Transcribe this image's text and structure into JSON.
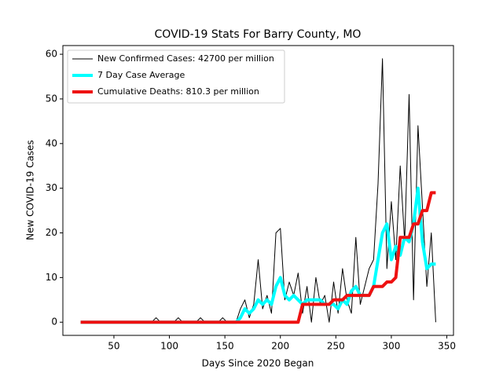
{
  "chart_data": {
    "type": "line",
    "title": "COVID-19 Stats For Barry County, MO",
    "x_label": "Days Since 2020 Began",
    "y_label": "New COVID-19 Cases",
    "x": [
      20,
      24,
      28,
      32,
      36,
      40,
      44,
      48,
      52,
      56,
      60,
      64,
      68,
      72,
      76,
      80,
      84,
      88,
      92,
      96,
      100,
      104,
      108,
      112,
      116,
      120,
      124,
      128,
      132,
      136,
      140,
      144,
      148,
      152,
      156,
      160,
      164,
      168,
      172,
      176,
      180,
      184,
      188,
      192,
      196,
      200,
      204,
      208,
      212,
      216,
      220,
      224,
      228,
      232,
      236,
      240,
      244,
      248,
      252,
      256,
      260,
      264,
      268,
      272,
      276,
      280,
      284,
      288,
      292,
      296,
      300,
      304,
      308,
      312,
      316,
      320,
      324,
      328,
      332,
      336,
      340
    ],
    "series": [
      {
        "name": "New Confirmed Cases: 42700 per million",
        "color": "#000000",
        "width": 1,
        "values": [
          0,
          0,
          0,
          0,
          0,
          0,
          0,
          0,
          0,
          0,
          0,
          0,
          0,
          0,
          0,
          0,
          0,
          1,
          0,
          0,
          0,
          0,
          1,
          0,
          0,
          0,
          0,
          1,
          0,
          0,
          0,
          0,
          1,
          0,
          0,
          0,
          3,
          5,
          1,
          4,
          14,
          3,
          6,
          2,
          20,
          21,
          5,
          9,
          6,
          11,
          2,
          8,
          0,
          10,
          4,
          6,
          0,
          9,
          2,
          12,
          5,
          2,
          19,
          4,
          8,
          12,
          14,
          31,
          59,
          12,
          27,
          14,
          35,
          18,
          51,
          5,
          44,
          26,
          8,
          20,
          0
        ]
      },
      {
        "name": "7 Day Case Average",
        "color": "#00ffff",
        "width": 4,
        "values": [
          0,
          0,
          0,
          0,
          0,
          0,
          0,
          0,
          0,
          0,
          0,
          0,
          0,
          0,
          0,
          0,
          0,
          0,
          0,
          0,
          0,
          0,
          0,
          0,
          0,
          0,
          0,
          0,
          0,
          0,
          0,
          0,
          0,
          0,
          0,
          0,
          1,
          3,
          2,
          3,
          5,
          4,
          5,
          4,
          8,
          10,
          6,
          5,
          6,
          5,
          4,
          5,
          5,
          5,
          5,
          4,
          4,
          4,
          3,
          5,
          4,
          7,
          8,
          6,
          6,
          6,
          8,
          14,
          20,
          22,
          14,
          17,
          15,
          19,
          18,
          22,
          30,
          18,
          12,
          13,
          13
        ]
      },
      {
        "name": "Cumulative Deaths: 810.3 per million",
        "color": "#ee1111",
        "width": 4,
        "values": [
          0,
          0,
          0,
          0,
          0,
          0,
          0,
          0,
          0,
          0,
          0,
          0,
          0,
          0,
          0,
          0,
          0,
          0,
          0,
          0,
          0,
          0,
          0,
          0,
          0,
          0,
          0,
          0,
          0,
          0,
          0,
          0,
          0,
          0,
          0,
          0,
          0,
          0,
          0,
          0,
          0,
          0,
          0,
          0,
          0,
          0,
          0,
          0,
          0,
          0,
          4,
          4,
          4,
          4,
          4,
          4,
          4,
          5,
          5,
          5,
          6,
          6,
          6,
          6,
          6,
          6,
          8,
          8,
          8,
          9,
          9,
          10,
          19,
          19,
          19,
          22,
          22,
          25,
          25,
          29,
          29
        ]
      }
    ],
    "xlim": [
      4,
      356
    ],
    "xticks": [
      50,
      100,
      150,
      200,
      250,
      300,
      350
    ],
    "ylim": [
      -2.95,
      61.95
    ],
    "yticks": [
      0,
      10,
      20,
      30,
      40,
      50,
      60
    ],
    "legend": "upper left"
  }
}
